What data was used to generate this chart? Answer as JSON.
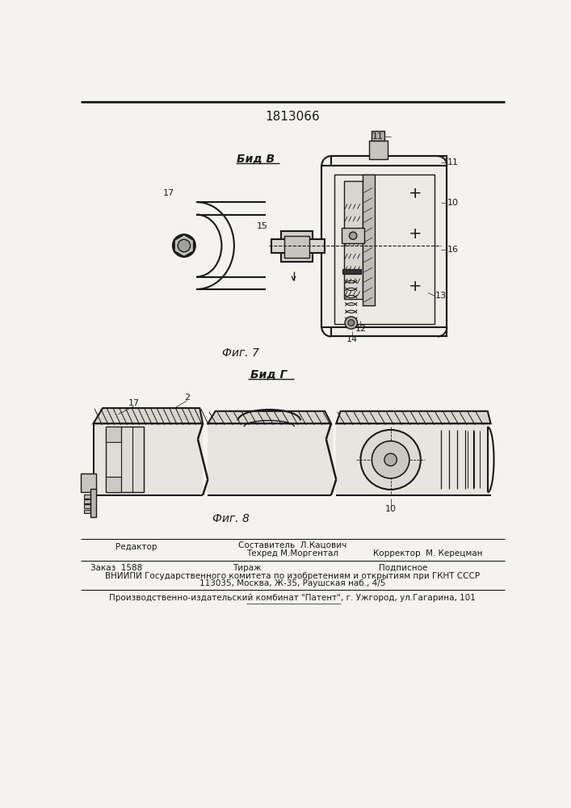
{
  "patent_number": "1813066",
  "fig7_label": "Фиг. 7",
  "fig8_label": "Фиг. 8",
  "view_B_label": "Бид В",
  "view_G_label": "Бид Г",
  "bg_color": "#f5f3ef",
  "line_color": "#1a1a1a",
  "hatch_color": "#333333",
  "footer_line1_left": "Редактор",
  "footer_line1_center": "Составитель  Л.Кацович",
  "footer_line2_center": "Техред М.Моргентал",
  "footer_line2_right": "Корректор  М. Керецман",
  "footer_line3_left": "Заказ  1588",
  "footer_line3_center": "Тираж",
  "footer_line3_right": "Подписное",
  "footer_line4": "ВНИИПИ Государственного комитета по изобретениям и открытиям при ГКНТ СССР",
  "footer_line5": "113035, Москва, Ж-35, Раушская наб., 4/5",
  "footer_line6": "Производственно-издательский комбинат \"Патент\", г. Ужгород, ул.Гагарина, 101"
}
